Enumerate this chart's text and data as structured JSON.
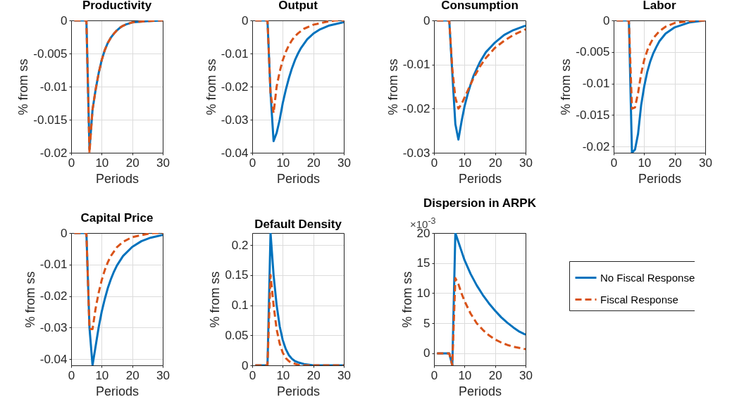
{
  "chart_data": [
    {
      "type": "line",
      "title": "Productivity",
      "xlabel": "Periods",
      "ylabel": "% from ss",
      "xlim": [
        0,
        30
      ],
      "xticks": [
        0,
        10,
        20,
        30
      ],
      "ylim": [
        -0.02,
        0
      ],
      "yticks": [
        -0.02,
        -0.015,
        -0.01,
        -0.005,
        0
      ],
      "grid": true,
      "series": [
        {
          "color": "#0072bd",
          "line_style": "solid",
          "x": [
            1,
            5,
            6,
            7,
            8,
            9,
            10,
            11,
            12,
            13,
            14,
            15,
            16,
            17,
            18,
            20,
            25,
            30
          ],
          "values": [
            0,
            0,
            -0.0195,
            -0.0135,
            -0.0105,
            -0.008,
            -0.006,
            -0.0045,
            -0.0034,
            -0.0026,
            -0.002,
            -0.0015,
            -0.0011,
            -0.0008,
            -0.0006,
            -0.0003,
            -0.0001,
            0
          ]
        },
        {
          "color": "#d95319",
          "line_style": "dashed",
          "x": [
            1,
            5,
            6,
            7,
            8,
            9,
            10,
            11,
            12,
            13,
            14,
            15,
            16,
            17,
            18,
            20,
            25,
            30
          ],
          "values": [
            0,
            0,
            -0.02,
            -0.0135,
            -0.0105,
            -0.008,
            -0.006,
            -0.0045,
            -0.0034,
            -0.0026,
            -0.002,
            -0.0015,
            -0.0011,
            -0.0008,
            -0.0006,
            -0.0003,
            -0.0001,
            0
          ]
        }
      ]
    },
    {
      "type": "line",
      "title": "Output",
      "xlabel": "Periods",
      "ylabel": "% from ss",
      "xlim": [
        0,
        30
      ],
      "xticks": [
        0,
        10,
        20,
        30
      ],
      "ylim": [
        -0.04,
        0
      ],
      "yticks": [
        -0.04,
        -0.03,
        -0.02,
        -0.01,
        0
      ],
      "grid": true,
      "series": [
        {
          "color": "#0072bd",
          "line_style": "solid",
          "x": [
            1,
            5,
            6,
            7,
            8,
            9,
            10,
            11,
            12,
            13,
            14,
            15,
            16,
            18,
            20,
            22,
            25,
            30
          ],
          "values": [
            0,
            0,
            -0.022,
            -0.0365,
            -0.034,
            -0.03,
            -0.025,
            -0.021,
            -0.0175,
            -0.0145,
            -0.012,
            -0.01,
            -0.0083,
            -0.0057,
            -0.004,
            -0.0028,
            -0.0016,
            -0.0005
          ]
        },
        {
          "color": "#d95319",
          "line_style": "dashed",
          "x": [
            1,
            5,
            6,
            7,
            8,
            9,
            10,
            11,
            12,
            13,
            14,
            15,
            17,
            20,
            25,
            27,
            30
          ],
          "values": [
            0,
            0,
            -0.022,
            -0.028,
            -0.02,
            -0.0155,
            -0.012,
            -0.0095,
            -0.0075,
            -0.006,
            -0.0048,
            -0.0039,
            -0.0025,
            -0.0013,
            -0.0003,
            0,
            0
          ]
        }
      ]
    },
    {
      "type": "line",
      "title": "Consumption",
      "xlabel": "Periods",
      "ylabel": "% from ss",
      "xlim": [
        0,
        30
      ],
      "xticks": [
        0,
        10,
        20,
        30
      ],
      "ylim": [
        -0.03,
        0
      ],
      "yticks": [
        -0.03,
        -0.02,
        -0.01,
        0
      ],
      "grid": true,
      "series": [
        {
          "color": "#0072bd",
          "line_style": "solid",
          "x": [
            1,
            5,
            6,
            7,
            8,
            9,
            10,
            11,
            12,
            13,
            14,
            15,
            17,
            20,
            23,
            26,
            30
          ],
          "values": [
            0,
            0,
            -0.012,
            -0.0235,
            -0.027,
            -0.023,
            -0.0195,
            -0.0168,
            -0.0145,
            -0.0125,
            -0.011,
            -0.0095,
            -0.0072,
            -0.005,
            -0.0033,
            -0.0022,
            -0.0012
          ]
        },
        {
          "color": "#d95319",
          "line_style": "dashed",
          "x": [
            1,
            5,
            6,
            7,
            8,
            9,
            10,
            11,
            12,
            13,
            15,
            17,
            20,
            23,
            26,
            30
          ],
          "values": [
            0,
            0,
            -0.011,
            -0.0175,
            -0.02,
            -0.019,
            -0.0175,
            -0.016,
            -0.0145,
            -0.013,
            -0.0105,
            -0.0085,
            -0.0062,
            -0.0046,
            -0.0033,
            -0.002
          ]
        }
      ]
    },
    {
      "type": "line",
      "title": "Labor",
      "xlabel": "Periods",
      "ylabel": "% from ss",
      "xlim": [
        0,
        30
      ],
      "xticks": [
        0,
        10,
        20,
        30
      ],
      "ylim": [
        -0.021,
        0
      ],
      "yticks": [
        -0.02,
        -0.015,
        -0.01,
        -0.005,
        0
      ],
      "grid": true,
      "series": [
        {
          "color": "#0072bd",
          "line_style": "solid",
          "x": [
            1,
            5,
            6,
            7,
            8,
            9,
            10,
            11,
            12,
            13,
            14,
            15,
            17,
            20,
            25,
            30
          ],
          "values": [
            0,
            0,
            -0.021,
            -0.0205,
            -0.018,
            -0.0135,
            -0.0105,
            -0.0082,
            -0.0065,
            -0.0052,
            -0.0042,
            -0.0033,
            -0.0021,
            -0.0011,
            -0.0003,
            0
          ]
        },
        {
          "color": "#d95319",
          "line_style": "dashed",
          "x": [
            1,
            5,
            6,
            7,
            8,
            9,
            10,
            11,
            12,
            13,
            15,
            17,
            20,
            25,
            30
          ],
          "values": [
            0,
            0,
            -0.014,
            -0.0138,
            -0.0115,
            -0.0085,
            -0.0063,
            -0.0048,
            -0.0037,
            -0.0028,
            -0.0017,
            -0.001,
            -0.0004,
            -0.0001,
            0
          ]
        }
      ]
    },
    {
      "type": "line",
      "title": "Capital Price",
      "xlabel": "Periods",
      "ylabel": "% from ss",
      "xlim": [
        0,
        30
      ],
      "xticks": [
        0,
        10,
        20,
        30
      ],
      "ylim": [
        -0.042,
        0
      ],
      "yticks": [
        -0.04,
        -0.03,
        -0.02,
        -0.01,
        0
      ],
      "grid": true,
      "series": [
        {
          "color": "#0072bd",
          "line_style": "solid",
          "x": [
            1,
            5,
            6,
            7,
            8,
            9,
            10,
            11,
            12,
            13,
            14,
            15,
            17,
            20,
            23,
            26,
            30
          ],
          "values": [
            0,
            0,
            -0.03,
            -0.042,
            -0.036,
            -0.03,
            -0.025,
            -0.021,
            -0.0175,
            -0.0147,
            -0.0123,
            -0.0103,
            -0.0073,
            -0.0044,
            -0.0026,
            -0.0015,
            -0.0006
          ]
        },
        {
          "color": "#d95319",
          "line_style": "dashed",
          "x": [
            1,
            5,
            6,
            7,
            8,
            9,
            10,
            11,
            12,
            13,
            15,
            17,
            20,
            25,
            27,
            30
          ],
          "values": [
            0,
            0,
            -0.0305,
            -0.0305,
            -0.024,
            -0.019,
            -0.015,
            -0.0118,
            -0.0093,
            -0.0073,
            -0.0045,
            -0.0028,
            -0.0013,
            -0.0003,
            0,
            0
          ]
        }
      ]
    },
    {
      "type": "line",
      "title": "Default Density",
      "xlabel": "Periods",
      "ylabel": "% from ss",
      "xlim": [
        0,
        30
      ],
      "xticks": [
        0,
        10,
        20,
        30
      ],
      "ylim": [
        0,
        0.22
      ],
      "yticks": [
        0,
        0.05,
        0.1,
        0.15,
        0.2
      ],
      "grid": true,
      "series": [
        {
          "color": "#0072bd",
          "line_style": "solid",
          "x": [
            1,
            5,
            6,
            7,
            8,
            9,
            10,
            11,
            12,
            13,
            14,
            15,
            17,
            20,
            25,
            30
          ],
          "values": [
            0,
            0,
            0.22,
            0.15,
            0.1,
            0.065,
            0.042,
            0.027,
            0.017,
            0.011,
            0.007,
            0.005,
            0.002,
            0,
            0,
            0
          ]
        },
        {
          "color": "#d95319",
          "line_style": "dashed",
          "x": [
            1,
            5,
            6,
            7,
            8,
            9,
            10,
            11,
            12,
            13,
            15,
            17,
            20,
            30
          ],
          "values": [
            0,
            0,
            0.15,
            0.1,
            0.06,
            0.036,
            0.021,
            0.012,
            0.007,
            0.004,
            0.001,
            0,
            0,
            0
          ]
        }
      ]
    },
    {
      "type": "line",
      "title": "Dispersion in ARPK",
      "xlabel": "Periods",
      "ylabel": "% from ss",
      "xlim": [
        0,
        30
      ],
      "xticks": [
        0,
        10,
        20,
        30
      ],
      "ylim": [
        -2,
        20
      ],
      "yticks": [
        0,
        5,
        10,
        15,
        20
      ],
      "grid": true,
      "legend": "right",
      "annotations": [
        "×10$^{-3}$"
      ],
      "series": [
        {
          "name": "No Fiscal Response",
          "color": "#0072bd",
          "line_style": "solid",
          "x": [
            1,
            5,
            6,
            7,
            8,
            9,
            10,
            12,
            14,
            16,
            18,
            20,
            22,
            24,
            26,
            28,
            30
          ],
          "values": [
            0,
            0,
            -2,
            20,
            18.5,
            17,
            15.5,
            13.2,
            11.3,
            9.7,
            8.3,
            7.1,
            6,
            5.1,
            4.3,
            3.6,
            3.1
          ]
        },
        {
          "name": "Fiscal Response",
          "color": "#d95319",
          "line_style": "dashed",
          "x": [
            1,
            5,
            6,
            7,
            8,
            9,
            10,
            12,
            14,
            16,
            18,
            20,
            22,
            24,
            26,
            28,
            30
          ],
          "values": [
            0,
            0,
            -2,
            12.5,
            11.5,
            10,
            8.7,
            6.6,
            5,
            3.9,
            3,
            2.3,
            1.8,
            1.4,
            1.1,
            0.9,
            0.7
          ]
        }
      ]
    }
  ]
}
